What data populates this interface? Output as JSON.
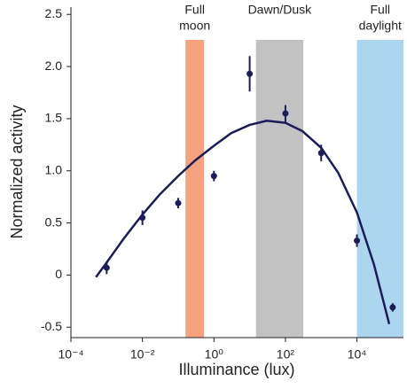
{
  "chart_data": {
    "type": "scatter",
    "x_label": "Illuminance (lux)",
    "y_label": "Normalized activity",
    "log_x": true,
    "xlim": [
      0.0001,
      200000
    ],
    "xticks": [
      {
        "value": 0.0001,
        "label": "10⁻⁴"
      },
      {
        "value": 0.01,
        "label": "10⁻²"
      },
      {
        "value": 1,
        "label": "10⁰"
      },
      {
        "value": 100,
        "label": "10²"
      },
      {
        "value": 10000,
        "label": "10⁴"
      }
    ],
    "ylim": [
      -0.6,
      2.57
    ],
    "yticks": [
      -0.5,
      0,
      0.5,
      {
        "value": 1,
        "label": "1.0"
      },
      1.5,
      {
        "value": 2,
        "label": "2.0"
      },
      2.5
    ],
    "bands": [
      {
        "label": [
          "Full",
          "moon"
        ],
        "range": [
          0.16,
          0.53
        ],
        "color": "#f7a27e"
      },
      {
        "label": [
          "Dawn/Dusk"
        ],
        "range": [
          15,
          316
        ],
        "color": "#c2c2c2"
      },
      {
        "label": [
          "Full",
          "daylight"
        ],
        "range": [
          10000,
          200000
        ],
        "color": "#acd6ee"
      }
    ],
    "points": {
      "color": "#1c1c5c",
      "x": [
        0.001,
        0.01,
        0.1,
        1,
        10,
        100,
        1000,
        10000,
        100000
      ],
      "values": [
        0.07,
        0.55,
        0.69,
        0.95,
        1.93,
        1.55,
        1.17,
        0.33,
        -0.31
      ],
      "errors": [
        0.06,
        0.07,
        0.05,
        0.05,
        0.17,
        0.08,
        0.08,
        0.06,
        0.04
      ]
    },
    "fit": {
      "color": "#1c1c5c",
      "x": [
        0.0005,
        0.001,
        0.003,
        0.01,
        0.03,
        0.1,
        0.3,
        1,
        3,
        10,
        30,
        100,
        300,
        1000,
        3000,
        10000,
        30000,
        80000
      ],
      "values": [
        -0.02,
        0.12,
        0.35,
        0.58,
        0.77,
        0.95,
        1.1,
        1.24,
        1.36,
        1.44,
        1.48,
        1.46,
        1.38,
        1.22,
        0.98,
        0.6,
        0.1,
        -0.47
      ]
    }
  }
}
